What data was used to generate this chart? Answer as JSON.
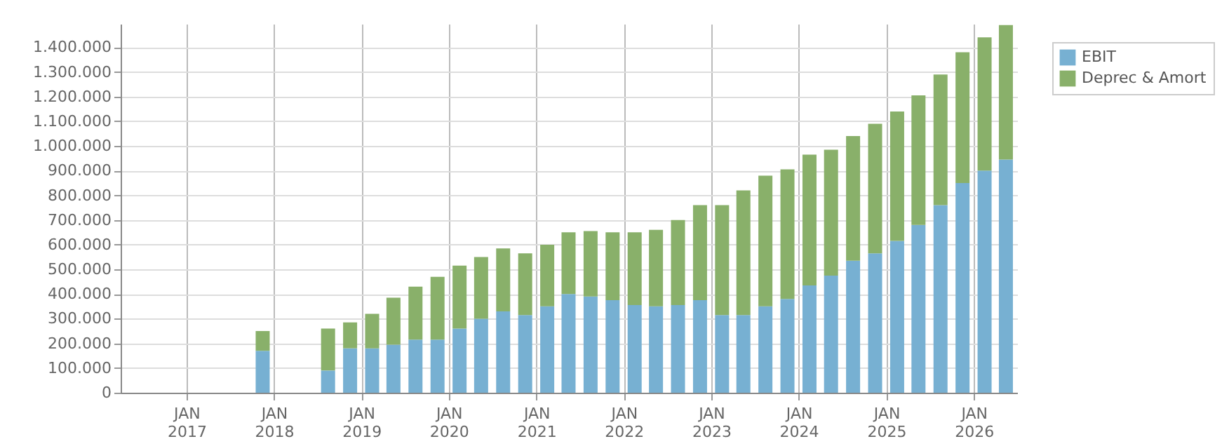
{
  "chart_data": {
    "type": "bar",
    "stacked": true,
    "grid": true,
    "legend": "top right",
    "x": [
      "2017-11-15",
      "2018-08-15",
      "2018-11-15",
      "2019-02-15",
      "2019-05-15",
      "2019-08-15",
      "2019-11-15",
      "2020-02-15",
      "2020-05-15",
      "2020-08-15",
      "2020-11-15",
      "2021-02-15",
      "2021-05-15",
      "2021-08-15",
      "2021-11-15",
      "2022-02-15",
      "2022-05-15",
      "2022-08-15",
      "2022-11-15",
      "2023-02-15",
      "2023-05-15",
      "2023-08-15",
      "2023-11-15",
      "2024-02-15",
      "2024-05-15",
      "2024-08-15",
      "2024-11-15",
      "2025-02-15",
      "2025-05-15",
      "2025-08-15",
      "2025-11-15",
      "2026-02-15",
      "2026-05-15"
    ],
    "series": [
      {
        "name": "EBIT",
        "color": "#77b0d2",
        "values": [
          170000,
          90000,
          180000,
          180000,
          195000,
          215000,
          215000,
          260000,
          300000,
          330000,
          315000,
          350000,
          400000,
          390000,
          375000,
          355000,
          350000,
          355000,
          375000,
          315000,
          315000,
          350000,
          380000,
          435000,
          475000,
          535000,
          565000,
          615000,
          680000,
          760000,
          850000,
          900000,
          945000
        ]
      },
      {
        "name": "Deprec & Amort",
        "color": "#89b06a",
        "values": [
          80000,
          170000,
          105000,
          140000,
          190000,
          215000,
          255000,
          255000,
          250000,
          255000,
          250000,
          250000,
          250000,
          265000,
          275000,
          295000,
          310000,
          345000,
          385000,
          445000,
          505000,
          530000,
          525000,
          530000,
          510000,
          505000,
          525000,
          525000,
          525000,
          530000,
          530000,
          540000,
          545000
        ]
      }
    ],
    "xlim": [
      "2016-04",
      "2026-07"
    ],
    "xticks": [
      {
        "value": "2017-01",
        "label": "JAN 2017"
      },
      {
        "value": "2018-01",
        "label": "JAN 2018"
      },
      {
        "value": "2019-01",
        "label": "JAN 2019"
      },
      {
        "value": "2020-01",
        "label": "JAN 2020"
      },
      {
        "value": "2021-01",
        "label": "JAN 2021"
      },
      {
        "value": "2022-01",
        "label": "JAN 2022"
      },
      {
        "value": "2023-01",
        "label": "JAN 2023"
      },
      {
        "value": "2024-01",
        "label": "JAN 2024"
      },
      {
        "value": "2025-01",
        "label": "JAN 2025"
      },
      {
        "value": "2026-01",
        "label": "JAN 2026"
      }
    ],
    "ylim": [
      0,
      1495000
    ],
    "yticks": [
      0,
      {
        "value": 100000,
        "label": "100.000"
      },
      {
        "value": 200000,
        "label": "200.000"
      },
      {
        "value": 300000,
        "label": "300.000"
      },
      {
        "value": 400000,
        "label": "400.000"
      },
      {
        "value": 500000,
        "label": "500.000"
      },
      {
        "value": 600000,
        "label": "600.000"
      },
      {
        "value": 700000,
        "label": "700.000"
      },
      {
        "value": 800000,
        "label": "800.000"
      },
      {
        "value": 900000,
        "label": "900.000"
      },
      {
        "value": 1000000,
        "label": "1.000.000"
      },
      {
        "value": 1100000,
        "label": "1.100.000"
      },
      {
        "value": 1200000,
        "label": "1.200.000"
      },
      {
        "value": 1300000,
        "label": "1.300.000"
      },
      {
        "value": 1400000,
        "label": "1.400.000"
      }
    ]
  }
}
